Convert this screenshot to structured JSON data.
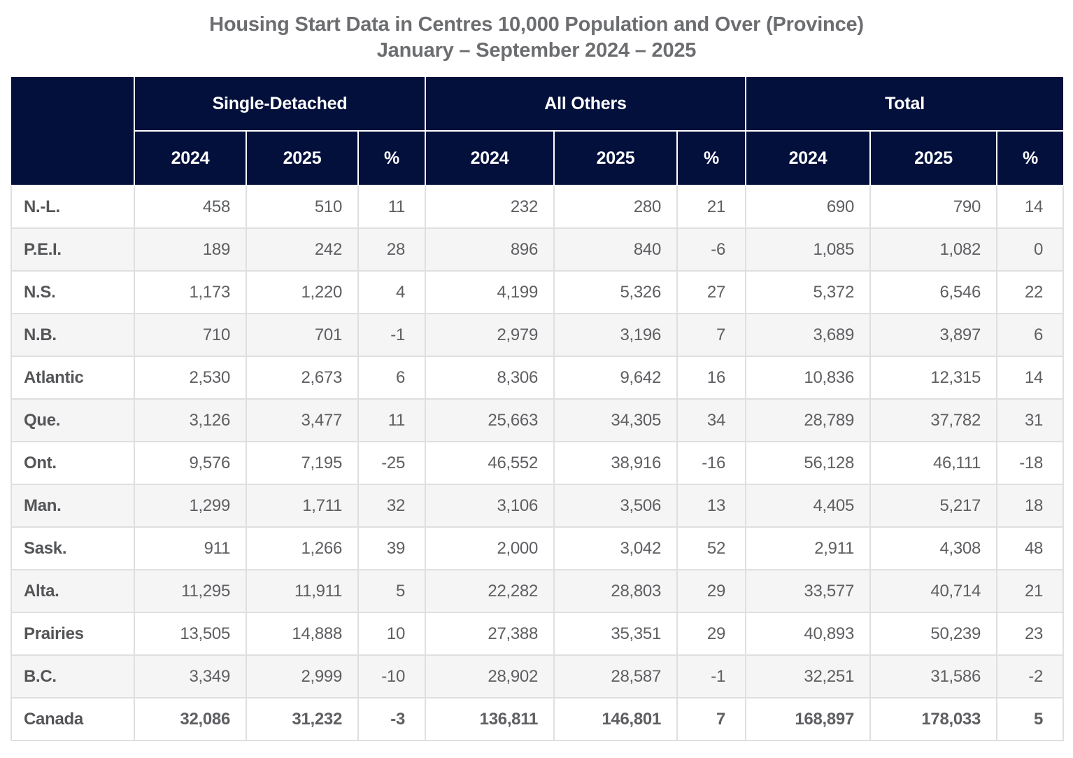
{
  "page": {
    "title_line1": "Housing Start Data in Centres 10,000 Population and Over (Province)",
    "title_line2": "January – September 2024 – 2025"
  },
  "table": {
    "corner_label": "",
    "column_groups": [
      {
        "label": "Single-Detached"
      },
      {
        "label": "All Others"
      },
      {
        "label": "Total"
      }
    ],
    "sub_headers": [
      "2024",
      "2025",
      "%"
    ]
  },
  "chart_data": {
    "type": "table",
    "title": "Housing Start Data in Centres 10,000 Population and Over (Province)",
    "subtitle": "January – September 2024 – 2025",
    "column_groups": [
      "Single-Detached",
      "All Others",
      "Total"
    ],
    "columns": [
      "2024",
      "2025",
      "%",
      "2024",
      "2025",
      "%",
      "2024",
      "2025",
      "%"
    ],
    "rows": [
      {
        "label": "N.-L.",
        "values": [
          458,
          510,
          11,
          232,
          280,
          21,
          690,
          790,
          14
        ]
      },
      {
        "label": "P.E.I.",
        "values": [
          189,
          242,
          28,
          896,
          840,
          -6,
          1085,
          1082,
          0
        ]
      },
      {
        "label": "N.S.",
        "values": [
          1173,
          1220,
          4,
          4199,
          5326,
          27,
          5372,
          6546,
          22
        ]
      },
      {
        "label": "N.B.",
        "values": [
          710,
          701,
          -1,
          2979,
          3196,
          7,
          3689,
          3897,
          6
        ]
      },
      {
        "label": "Atlantic",
        "values": [
          2530,
          2673,
          6,
          8306,
          9642,
          16,
          10836,
          12315,
          14
        ]
      },
      {
        "label": "Que.",
        "values": [
          3126,
          3477,
          11,
          25663,
          34305,
          34,
          28789,
          37782,
          31
        ]
      },
      {
        "label": "Ont.",
        "values": [
          9576,
          7195,
          -25,
          46552,
          38916,
          -16,
          56128,
          46111,
          -18
        ]
      },
      {
        "label": "Man.",
        "values": [
          1299,
          1711,
          32,
          3106,
          3506,
          13,
          4405,
          5217,
          18
        ]
      },
      {
        "label": "Sask.",
        "values": [
          911,
          1266,
          39,
          2000,
          3042,
          52,
          2911,
          4308,
          48
        ]
      },
      {
        "label": "Alta.",
        "values": [
          11295,
          11911,
          5,
          22282,
          28803,
          29,
          33577,
          40714,
          21
        ]
      },
      {
        "label": "Prairies",
        "values": [
          13505,
          14888,
          10,
          27388,
          35351,
          29,
          40893,
          50239,
          23
        ]
      },
      {
        "label": "B.C.",
        "values": [
          3349,
          2999,
          -10,
          28902,
          28587,
          -1,
          32251,
          31586,
          -2
        ]
      },
      {
        "label": "Canada",
        "values": [
          32086,
          31232,
          -3,
          136811,
          146801,
          7,
          168897,
          178033,
          5
        ]
      }
    ],
    "summary_row_label": "Canada"
  },
  "colors": {
    "header_bg": "#03103c",
    "header_text": "#ffffff",
    "row_alt_bg": "#f5f5f5",
    "grid_border": "#dfdfdf",
    "body_text": "#5e5f62",
    "label_text": "#545558",
    "title_text": "#6c6d70"
  }
}
